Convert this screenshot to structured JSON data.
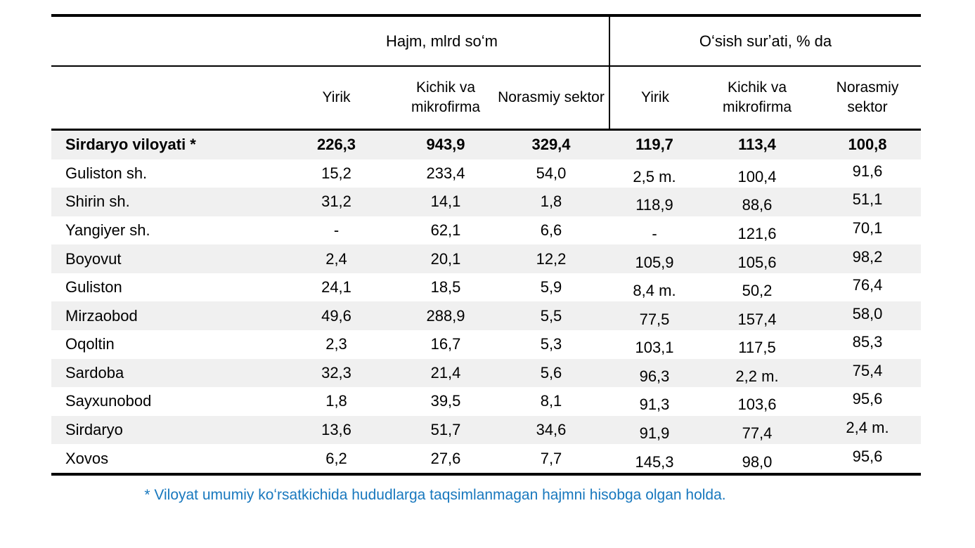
{
  "table": {
    "group_headers": [
      {
        "label": "Hajm, mlrd soʻm"
      },
      {
        "label": "Oʻsish surʼati, % da"
      }
    ],
    "sub_headers": [
      "Yirik",
      "Kichik va mikrofirma",
      "Norasmiy sektor",
      "Yirik",
      "Kichik va mikrofirma",
      "Norasmiy sektor"
    ],
    "rows": [
      {
        "name": "Sirdaryo viloyati *",
        "bold": true,
        "values": [
          "226,3",
          "943,9",
          "329,4",
          "119,7",
          "113,4",
          "100,8"
        ]
      },
      {
        "name": "Guliston sh.",
        "bold": false,
        "values": [
          "15,2",
          "233,4",
          "54,0",
          "2,5 m.",
          "100,4",
          "91,6"
        ]
      },
      {
        "name": "Shirin sh.",
        "bold": false,
        "values": [
          "31,2",
          "14,1",
          "1,8",
          "118,9",
          "88,6",
          "51,1"
        ]
      },
      {
        "name": "Yangiyer sh.",
        "bold": false,
        "values": [
          "-",
          "62,1",
          "6,6",
          "-",
          "121,6",
          "70,1"
        ]
      },
      {
        "name": "Boyovut",
        "bold": false,
        "values": [
          "2,4",
          "20,1",
          "12,2",
          "105,9",
          "105,6",
          "98,2"
        ]
      },
      {
        "name": "Guliston",
        "bold": false,
        "values": [
          "24,1",
          "18,5",
          "5,9",
          "8,4 m.",
          "50,2",
          "76,4"
        ]
      },
      {
        "name": "Mirzaobod",
        "bold": false,
        "values": [
          "49,6",
          "288,9",
          "5,5",
          "77,5",
          "157,4",
          "58,0"
        ]
      },
      {
        "name": "Oqoltin",
        "bold": false,
        "values": [
          "2,3",
          "16,7",
          "5,3",
          "103,1",
          "117,5",
          "85,3"
        ]
      },
      {
        "name": "Sardoba",
        "bold": false,
        "values": [
          "32,3",
          "21,4",
          "5,6",
          "96,3",
          "2,2 m.",
          "75,4"
        ]
      },
      {
        "name": "Sayxunobod",
        "bold": false,
        "values": [
          "1,8",
          "39,5",
          "8,1",
          "91,3",
          "103,6",
          "95,6"
        ]
      },
      {
        "name": "Sirdaryo",
        "bold": false,
        "values": [
          "13,6",
          "51,7",
          "34,6",
          "91,9",
          "77,4",
          "2,4 m."
        ]
      },
      {
        "name": "Xovos",
        "bold": false,
        "values": [
          "6,2",
          "27,6",
          "7,7",
          "145,3",
          "98,0",
          "95,6"
        ]
      }
    ]
  },
  "footnote": "* Viloyat umumiy koʻrsatkichida hududlarga taqsimlanmagan hajmni hisobga olgan holda.",
  "colors": {
    "footnote_blue": "#1878be",
    "stripe_gray": "#f0f0f0",
    "border_black": "#000000"
  }
}
